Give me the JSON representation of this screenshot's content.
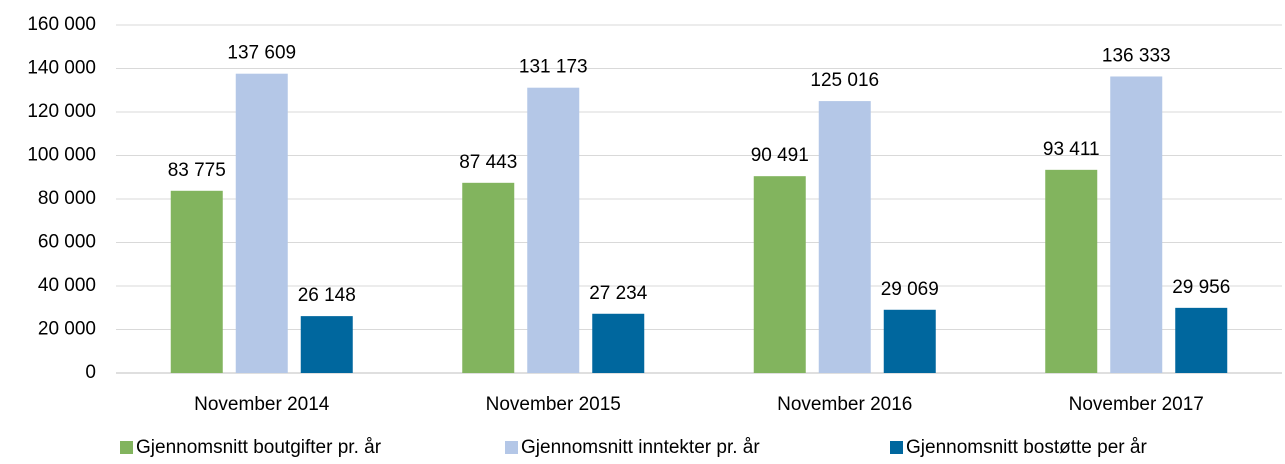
{
  "chart_data": {
    "type": "bar",
    "categories": [
      "November 2014",
      "November 2015",
      "November 2016",
      "November 2017"
    ],
    "series": [
      {
        "name": "Gjennomsnitt boutgifter pr. år",
        "color": "#82b45e",
        "values": [
          83775,
          87443,
          90491,
          93411
        ],
        "value_labels": [
          "83 775",
          "87 443",
          "90 491",
          "93 411"
        ]
      },
      {
        "name": "Gjennomsnitt inntekter pr. år",
        "color": "#b4c7e7",
        "values": [
          137609,
          131173,
          125016,
          136333
        ],
        "value_labels": [
          "137 609",
          "131 173",
          "125 016",
          "136 333"
        ]
      },
      {
        "name": "Gjennomsnitt bostøtte per år",
        "color": "#00679e",
        "values": [
          26148,
          27234,
          29069,
          29956
        ],
        "value_labels": [
          "26 148",
          "27 234",
          "29 069",
          "29 956"
        ]
      }
    ],
    "ylim": [
      0,
      160000
    ],
    "yticks": [
      0,
      {
        "value": 20000,
        "label": "20 000"
      },
      {
        "value": 40000,
        "label": "40 000"
      },
      {
        "value": 60000,
        "label": "60 000"
      },
      {
        "value": 80000,
        "label": "80 000"
      },
      {
        "value": 100000,
        "label": "100 000"
      },
      {
        "value": 120000,
        "label": "120 000"
      },
      {
        "value": 140000,
        "label": "140 000"
      },
      {
        "value": 160000,
        "label": "160 000"
      }
    ],
    "grid": true,
    "legend": "bottom"
  }
}
